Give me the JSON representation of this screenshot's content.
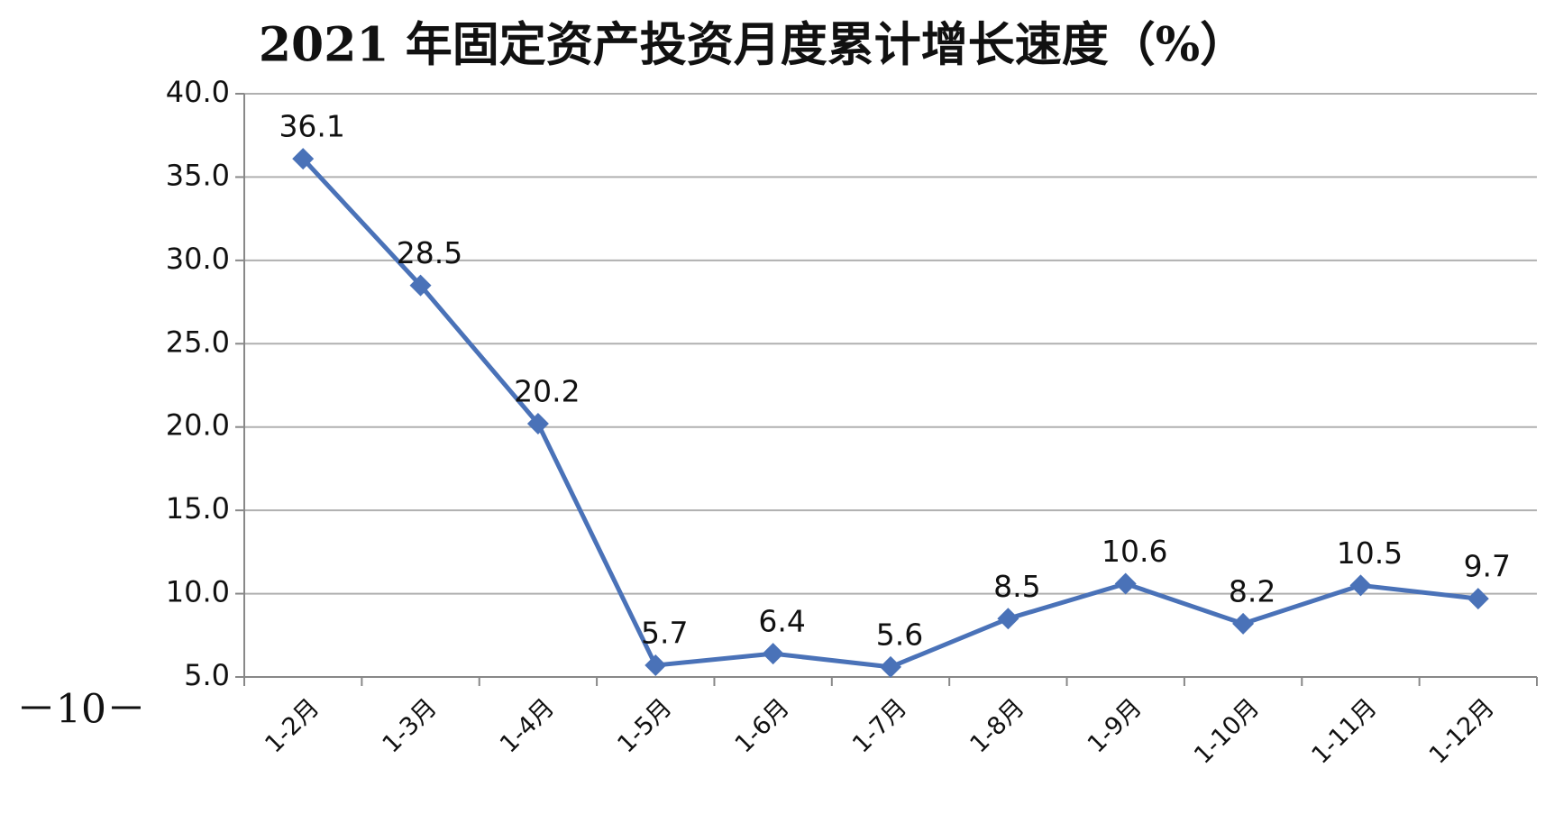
{
  "chart_data": {
    "type": "line",
    "title": "2021 年固定资产投资月度累计增长速度（%）",
    "categories": [
      "1-2月",
      "1-3月",
      "1-4月",
      "1-5月",
      "1-6月",
      "1-7月",
      "1-8月",
      "1-9月",
      "1-10月",
      "1-11月",
      "1-12月"
    ],
    "values": [
      36.1,
      28.5,
      20.2,
      5.7,
      6.4,
      5.6,
      8.5,
      10.6,
      8.2,
      10.5,
      9.7
    ],
    "color": "#4a72b8",
    "ylim": [
      5,
      40
    ],
    "yticks": [
      {
        "value": 5,
        "label": "5.0"
      },
      {
        "value": 10,
        "label": "10.0"
      },
      {
        "value": 15,
        "label": "15.0"
      },
      {
        "value": 20,
        "label": "20.0"
      },
      {
        "value": 25,
        "label": "25.0"
      },
      {
        "value": 30,
        "label": "30.0"
      },
      {
        "value": 35,
        "label": "35.0"
      },
      {
        "value": 40,
        "label": "40.0"
      }
    ],
    "grid": true
  },
  "footer": {
    "page_number": "－10－"
  }
}
